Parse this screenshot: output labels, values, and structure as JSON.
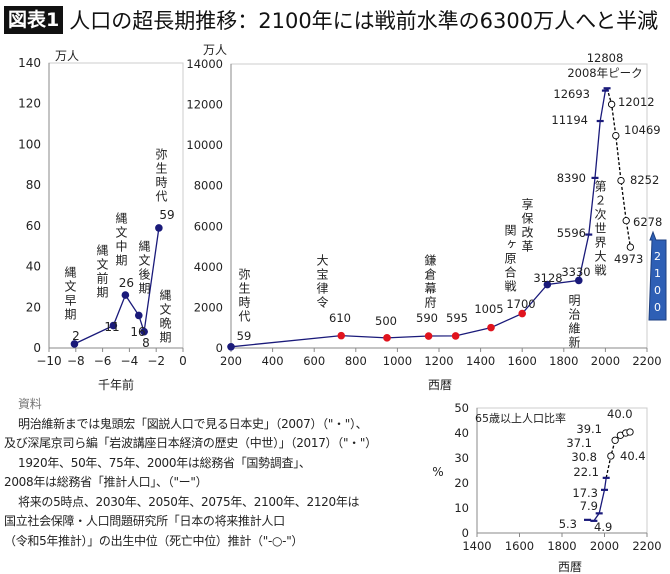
{
  "title": {
    "badge": "図表1",
    "text": "人口の超長期推移：2100年には戦前水準の6300万人へと半減"
  },
  "notes": {
    "heading": "資料",
    "lines": [
      "明治維新までは鬼頭宏「図説人口で見る日本史」（2007）（\"・\"）、",
      "及び深尾京司ら編「岩波講座日本経済の歴史（中世）」（2017）（\"・\"）",
      "1920年、50年、75年、2000年は総務省「国勢調査」、",
      "2008年は総務省「推計人口」、（\"ー\"）",
      "将来の5時点、2030年、2050年、2075年、2100年、2120年は",
      "国立社会保障・人口問題研究所「日本の将来推計人口",
      "（令和5年推計）」の出生中位（死亡中位）推計（\"-○-\"）"
    ]
  },
  "chart_data": [
    {
      "type": "line",
      "ylabel": "万人",
      "xlabel": "千年前",
      "xlim": [
        -10,
        0
      ],
      "ylim": [
        0,
        140
      ],
      "xticks": [
        -10,
        -8,
        -6,
        -4,
        -2,
        0
      ],
      "yticks": [
        0,
        20,
        40,
        60,
        80,
        100,
        120,
        140
      ],
      "color": "#1a1a7a",
      "points": [
        {
          "x": -8.1,
          "y": 2,
          "label": "2",
          "era": "縄文早期"
        },
        {
          "x": -5.2,
          "y": 11,
          "label": "11",
          "era": "縄文前期"
        },
        {
          "x": -4.3,
          "y": 26,
          "label": "26",
          "era": "縄文中期"
        },
        {
          "x": -3.3,
          "y": 16,
          "label": "16",
          "era": "縄文後期"
        },
        {
          "x": -2.9,
          "y": 8,
          "label": "8",
          "era": "縄文晩期"
        },
        {
          "x": -1.8,
          "y": 59,
          "label": "59",
          "era": "弥生時代"
        }
      ]
    },
    {
      "type": "line",
      "ylabel": "万人",
      "xlabel": "西暦",
      "xlim": [
        200,
        2200
      ],
      "ylim": [
        0,
        14000
      ],
      "xticks": [
        200,
        400,
        600,
        800,
        1000,
        1200,
        1400,
        1600,
        1800,
        2000,
        2200
      ],
      "yticks": [
        0,
        2000,
        4000,
        6000,
        8000,
        10000,
        12000,
        14000
      ],
      "colors": {
        "line": "#1a1a7a",
        "kito": "#1a1a7a",
        "fukao": "#e0141e",
        "census": "#1a1a7a",
        "projection": "#000000"
      },
      "series": [
        {
          "source": "kito",
          "values": [
            [
              200,
              59
            ],
            [
              1721,
              3128
            ],
            [
              1872,
              3330
            ]
          ]
        },
        {
          "source": "fukao",
          "values": [
            [
              730,
              610
            ],
            [
              950,
              500
            ],
            [
              1150,
              590
            ],
            [
              1280,
              595
            ],
            [
              1450,
              1005
            ],
            [
              1600,
              1700
            ]
          ]
        },
        {
          "source": "census",
          "values": [
            [
              1920,
              5596
            ],
            [
              1950,
              8390
            ],
            [
              1975,
              11194
            ],
            [
              2000,
              12693
            ],
            [
              2008,
              12808
            ]
          ]
        },
        {
          "source": "projection",
          "values": [
            [
              2030,
              12012
            ],
            [
              2050,
              10469
            ],
            [
              2075,
              8252
            ],
            [
              2100,
              6278
            ],
            [
              2120,
              4973
            ]
          ]
        }
      ],
      "annotations": [
        "弥生時代",
        "大宝律令",
        "鎌倉幕府",
        "関ヶ原合戦",
        "享保改革",
        "明治維新",
        "第２次世界大戦",
        "2008年ピーク"
      ],
      "callout": "2100",
      "callout_color": "#2e5fb5"
    },
    {
      "type": "line",
      "title": "65歳以上人口比率",
      "ylabel": "%",
      "xlabel": "西暦",
      "xlim": [
        1400,
        2200
      ],
      "ylim": [
        0,
        50
      ],
      "xticks": [
        1400,
        1600,
        1800,
        2000,
        2200
      ],
      "yticks": [
        0,
        10,
        20,
        30,
        40,
        50
      ],
      "series": [
        {
          "source": "census",
          "values": [
            [
              1920,
              5.3
            ],
            [
              1950,
              4.9
            ],
            [
              1975,
              7.9
            ],
            [
              2000,
              17.3
            ],
            [
              2008,
              22.1
            ]
          ]
        },
        {
          "source": "projection",
          "values": [
            [
              2030,
              30.8
            ],
            [
              2050,
              37.1
            ],
            [
              2075,
              39.1
            ],
            [
              2100,
              40.0
            ],
            [
              2120,
              40.4
            ]
          ]
        }
      ]
    }
  ]
}
